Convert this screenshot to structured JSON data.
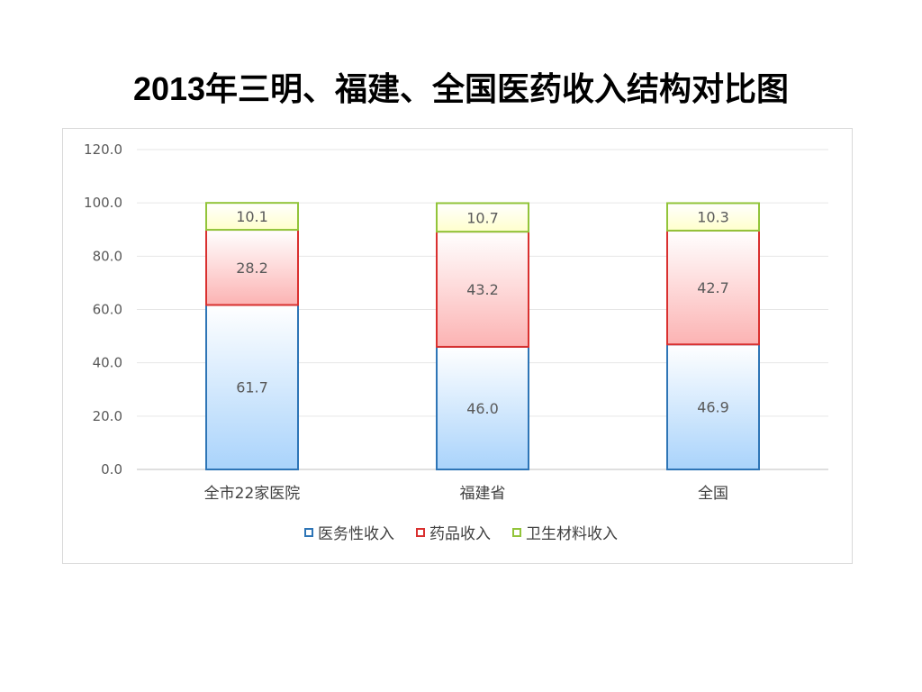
{
  "title": "2013年三明、福建、全国医药收入结构对比图",
  "chart_data": {
    "type": "bar",
    "stacked": true,
    "categories": [
      "全市22家医院",
      "福建省",
      "全国"
    ],
    "series": [
      {
        "name": "医务性收入",
        "values": [
          61.7,
          46.0,
          46.9
        ],
        "color": "#2e75b6",
        "fill_top": "#ffffff",
        "fill_bottom": "#a9d3fb"
      },
      {
        "name": "药品收入",
        "values": [
          28.2,
          43.2,
          42.7
        ],
        "color": "#d9302f",
        "fill_top": "#ffffff",
        "fill_bottom": "#fcb3b3"
      },
      {
        "name": "卫生材料收入",
        "values": [
          10.1,
          10.7,
          10.3
        ],
        "color": "#92c43a",
        "fill_top": "#ffffff",
        "fill_bottom": "#ffffcc"
      }
    ],
    "ylim": [
      0,
      120
    ],
    "yticks": [
      "0.0",
      "20.0",
      "40.0",
      "60.0",
      "80.0",
      "100.0",
      "120.0"
    ],
    "grid": true,
    "legend_position": "bottom"
  }
}
